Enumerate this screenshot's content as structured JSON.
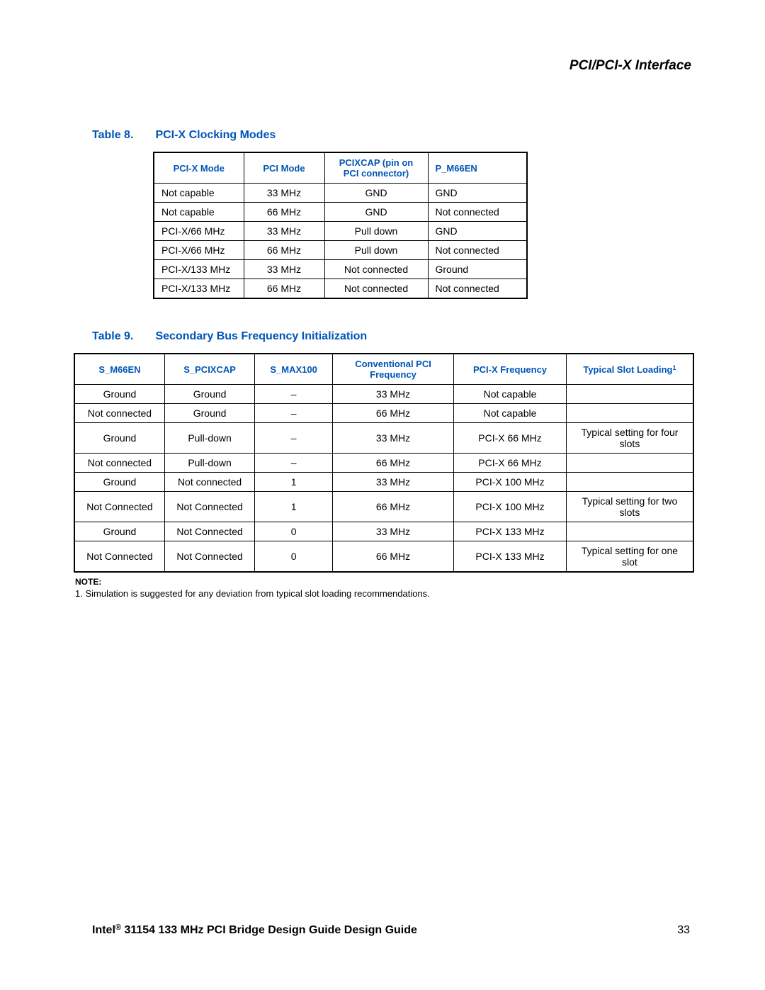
{
  "colors": {
    "link_blue": "#0055b8",
    "text_black": "#000000",
    "background": "#ffffff",
    "border": "#000000"
  },
  "header": {
    "section_title": "PCI/PCI-X Interface"
  },
  "table8": {
    "caption_number": "Table 8.",
    "caption_name": "PCI-X Clocking Modes",
    "columns": [
      "PCI-X Mode",
      "PCI Mode",
      "PCIXCAP (pin on PCI connector)",
      "P_M66EN"
    ],
    "rows": [
      [
        "Not capable",
        "33 MHz",
        "GND",
        "GND"
      ],
      [
        "Not capable",
        "66 MHz",
        "GND",
        "Not connected"
      ],
      [
        "PCI-X/66 MHz",
        "33 MHz",
        "Pull down",
        "GND"
      ],
      [
        "PCI-X/66 MHz",
        "66 MHz",
        "Pull down",
        "Not connected"
      ],
      [
        "PCI-X/133 MHz",
        "33 MHz",
        "Not connected",
        "Ground"
      ],
      [
        "PCI-X/133 MHz",
        "66 MHz",
        "Not connected",
        "Not connected"
      ]
    ]
  },
  "table9": {
    "caption_number": "Table 9.",
    "caption_name": "Secondary Bus Frequency Initialization",
    "columns": [
      "S_M66EN",
      "S_PCIXCAP",
      "S_MAX100",
      "Conventional PCI Frequency",
      "PCI-X Frequency",
      "Typical Slot Loading"
    ],
    "header_sup": "1",
    "rows": [
      [
        "Ground",
        "Ground",
        "–",
        "33 MHz",
        "Not capable",
        ""
      ],
      [
        "Not connected",
        "Ground",
        "–",
        "66 MHz",
        "Not capable",
        ""
      ],
      [
        "Ground",
        "Pull-down",
        "–",
        "33 MHz",
        "PCI-X 66 MHz",
        "Typical setting for four slots"
      ],
      [
        "Not connected",
        "Pull-down",
        "–",
        "66 MHz",
        "PCI-X 66 MHz",
        ""
      ],
      [
        "Ground",
        "Not connected",
        "1",
        "33 MHz",
        "PCI-X 100 MHz",
        ""
      ],
      [
        "Not Connected",
        "Not Connected",
        "1",
        "66 MHz",
        "PCI-X 100 MHz",
        "Typical setting for two slots"
      ],
      [
        "Ground",
        "Not Connected",
        "0",
        "33 MHz",
        "PCI-X 133 MHz",
        ""
      ],
      [
        "Not Connected",
        "Not Connected",
        "0",
        "66 MHz",
        "PCI-X 133 MHz",
        "Typical setting for one slot"
      ]
    ],
    "note_label": "NOTE:",
    "note_text": "1. Simulation is suggested for any deviation from typical slot loading recommendations."
  },
  "footer": {
    "title_prefix": "Intel",
    "reg_mark": "®",
    "title_rest": " 31154 133 MHz PCI Bridge Design Guide Design Guide",
    "page_number": "33"
  }
}
